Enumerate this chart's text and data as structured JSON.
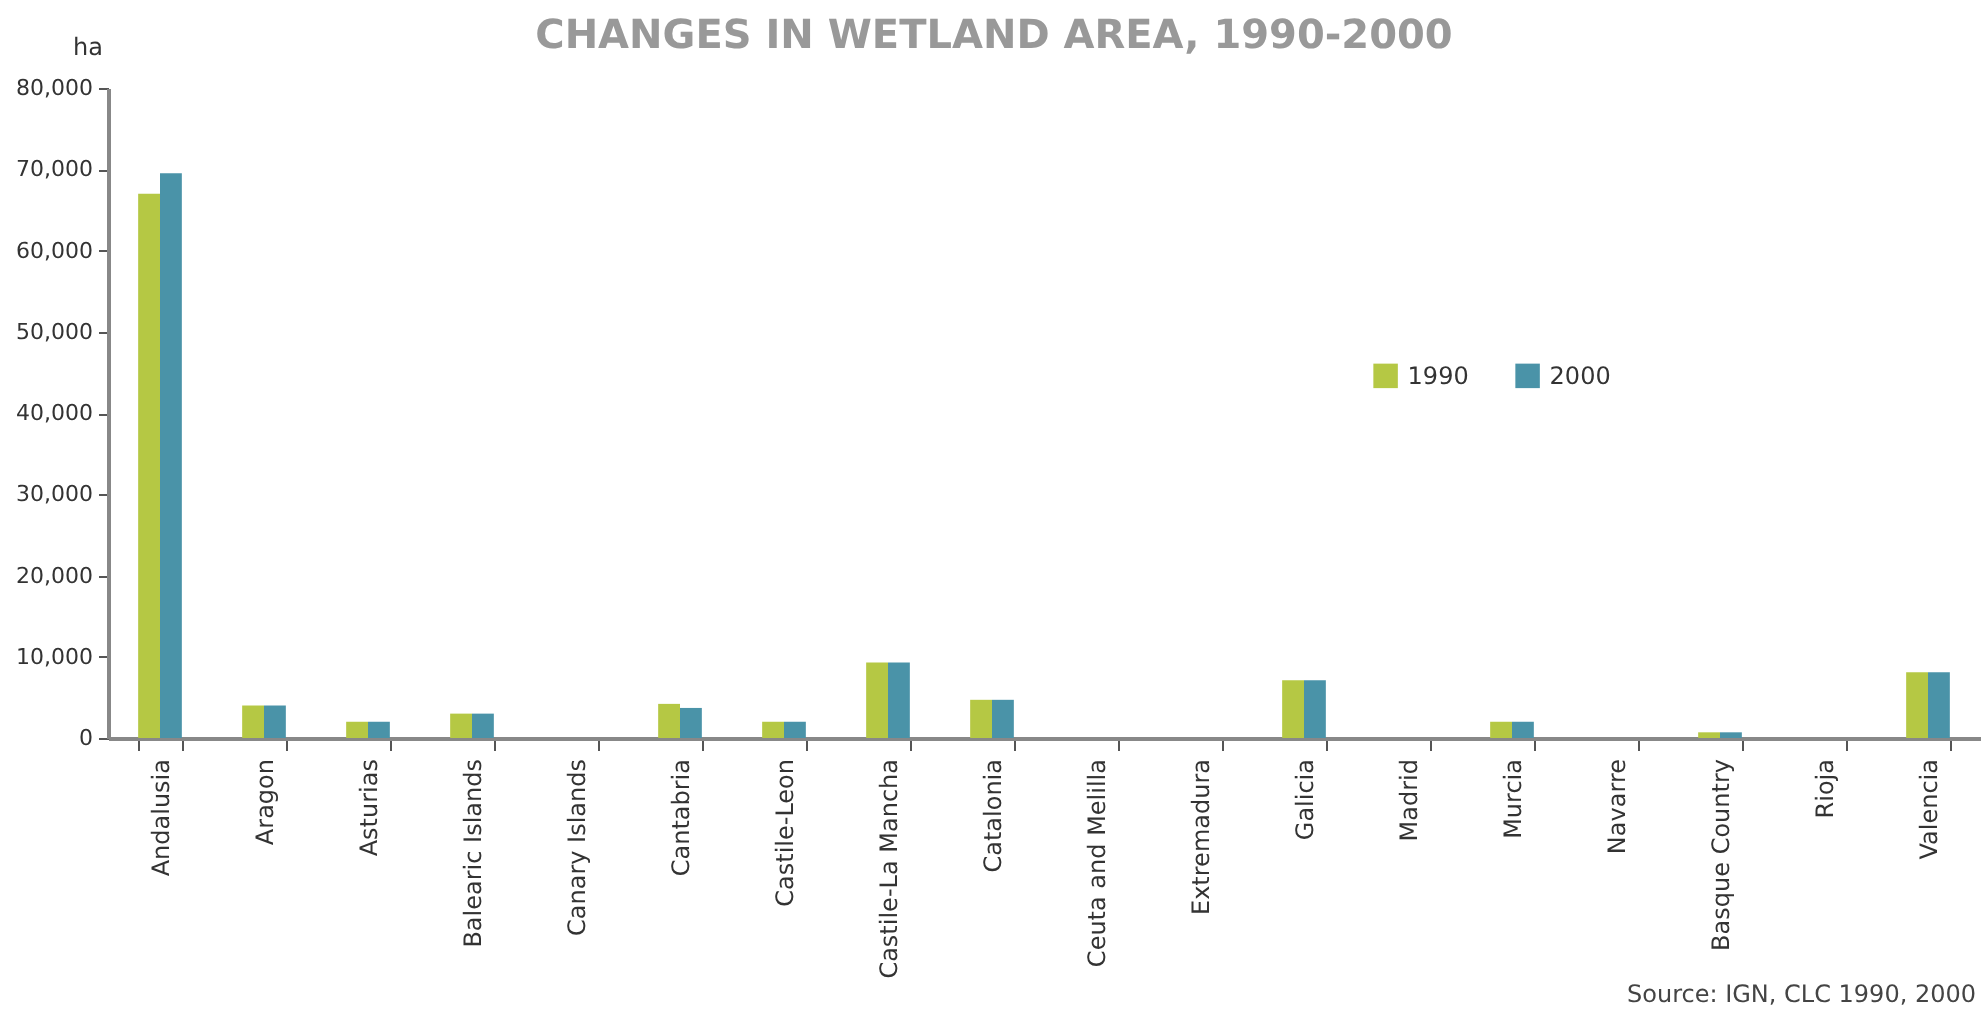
{
  "chart_data": {
    "type": "bar",
    "title": "CHANGES IN WETLAND AREA, 1990-2000",
    "ylabel": "ha",
    "categories": [
      "Andalusia",
      "Aragon",
      "Asturias",
      "Balearic Islands",
      "Canary Islands",
      "Cantabria",
      "Castile-Leon",
      "Castile-La Mancha",
      "Catalonia",
      "Ceuta and Melilla",
      "Extremadura",
      "Galicia",
      "Madrid",
      "Murcia",
      "Navarre",
      "Basque Country",
      "Rioja",
      "Valencia"
    ],
    "series": [
      {
        "name": "1990",
        "color": "#b5c844",
        "values": [
          67000,
          4000,
          2000,
          3000,
          0,
          4200,
          2000,
          9300,
          4700,
          0,
          0,
          7100,
          0,
          2000,
          0,
          700,
          0,
          8100
        ]
      },
      {
        "name": "2000",
        "color": "#4a93a8",
        "values": [
          69500,
          4000,
          2000,
          3000,
          0,
          3700,
          2000,
          9300,
          4700,
          0,
          0,
          7100,
          0,
          2000,
          0,
          700,
          0,
          8100
        ]
      }
    ],
    "ylim": [
      0,
      80000
    ],
    "yticks": [
      0,
      {
        "value": 10000,
        "label": "10,000"
      },
      {
        "value": 20000,
        "label": "20,000"
      },
      {
        "value": 30000,
        "label": "30,000"
      },
      {
        "value": 40000,
        "label": "40,000"
      },
      {
        "value": 50000,
        "label": "50,000"
      },
      {
        "value": 60000,
        "label": "60,000"
      },
      {
        "value": 70000,
        "label": "70,000"
      },
      {
        "value": 80000,
        "label": "80,000"
      }
    ],
    "legend": "right",
    "annotations": [
      "Source: IGN, CLC 1990, 2000"
    ]
  }
}
